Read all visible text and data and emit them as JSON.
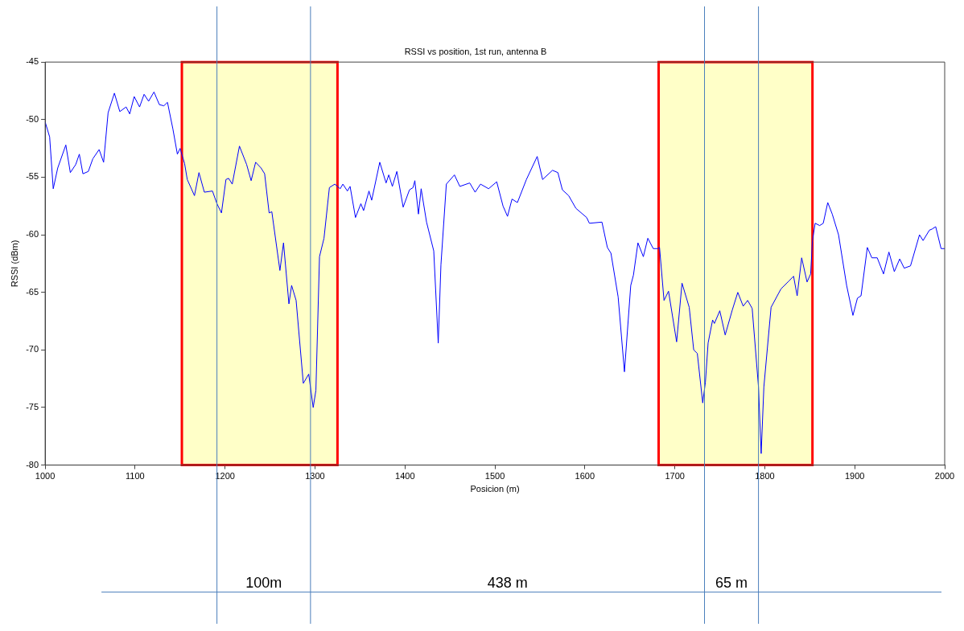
{
  "chart_data": {
    "type": "line",
    "title": "RSSI vs position, 1st run, antenna B",
    "xlabel": "Posicion (m)",
    "ylabel": "RSSI (dBm)",
    "xlim": [
      1000,
      2000
    ],
    "xticks": [
      1000,
      1100,
      1200,
      1300,
      1400,
      1500,
      1600,
      1700,
      1800,
      1900,
      2000
    ],
    "ylim": [
      -80,
      -45
    ],
    "yticks": [
      -80,
      -75,
      -70,
      -65,
      -60,
      -55,
      -50,
      -45
    ],
    "grid": false,
    "legend": false,
    "marker": "none",
    "line_style": "solid",
    "series": [
      {
        "color": "#0000ff",
        "x": [
          1000,
          1005,
          1009,
          1014,
          1023,
          1028,
          1034,
          1038,
          1042,
          1048,
          1053,
          1060,
          1065,
          1070,
          1077,
          1083,
          1090,
          1094,
          1099,
          1105,
          1110,
          1115,
          1121,
          1127,
          1132,
          1136,
          1142,
          1147,
          1150,
          1155,
          1158,
          1166,
          1171,
          1177,
          1186,
          1191,
          1196,
          1201,
          1204,
          1208,
          1216,
          1224,
          1229,
          1234,
          1240,
          1244,
          1249,
          1252,
          1261,
          1265,
          1271,
          1274,
          1279,
          1287,
          1293,
          1298,
          1301,
          1305,
          1310,
          1316,
          1322,
          1328,
          1331,
          1336,
          1339,
          1345,
          1351,
          1354,
          1360,
          1363,
          1372,
          1379,
          1382,
          1386,
          1391,
          1398,
          1405,
          1409,
          1411,
          1415,
          1418,
          1424,
          1432,
          1437,
          1440,
          1446,
          1455,
          1461,
          1472,
          1478,
          1484,
          1493,
          1502,
          1509,
          1514,
          1519,
          1525,
          1535,
          1547,
          1553,
          1564,
          1570,
          1575,
          1582,
          1590,
          1602,
          1605,
          1619,
          1625,
          1629,
          1637,
          1644,
          1651,
          1654,
          1659,
          1665,
          1670,
          1676,
          1681,
          1683,
          1688,
          1693,
          1702,
          1708,
          1716,
          1721,
          1725,
          1731,
          1734,
          1737,
          1742,
          1744,
          1750,
          1756,
          1764,
          1770,
          1776,
          1781,
          1786,
          1793,
          1796,
          1799,
          1807,
          1818,
          1827,
          1832,
          1836,
          1841,
          1847,
          1851,
          1853,
          1856,
          1861,
          1865,
          1870,
          1875,
          1882,
          1891,
          1898,
          1903,
          1907,
          1914,
          1919,
          1925,
          1932,
          1938,
          1944,
          1950,
          1955,
          1962,
          1972,
          1976,
          1983,
          1986,
          1990,
          1996,
          2000
        ],
        "values": [
          -50.2,
          -51.5,
          -56,
          -54.2,
          -52.2,
          -54.6,
          -53.9,
          -53,
          -54.7,
          -54.5,
          -53.4,
          -52.6,
          -53.7,
          -49.4,
          -47.7,
          -49.3,
          -48.9,
          -49.5,
          -48,
          -48.9,
          -47.8,
          -48.4,
          -47.6,
          -48.7,
          -48.8,
          -48.5,
          -50.8,
          -53,
          -52.5,
          -53.8,
          -55.2,
          -56.6,
          -54.6,
          -56.3,
          -56.2,
          -57.3,
          -58.1,
          -55.2,
          -55.1,
          -55.6,
          -52.3,
          -53.9,
          -55.3,
          -53.7,
          -54.2,
          -54.7,
          -58.1,
          -58,
          -63.1,
          -60.7,
          -66,
          -64.4,
          -65.7,
          -72.9,
          -72.1,
          -75,
          -73.5,
          -61.9,
          -60.3,
          -55.9,
          -55.6,
          -56,
          -55.6,
          -56.2,
          -55.8,
          -58.5,
          -57.3,
          -57.9,
          -56.2,
          -57,
          -53.7,
          -55.5,
          -54.8,
          -55.8,
          -54.5,
          -57.6,
          -56.1,
          -55.9,
          -55.3,
          -58.2,
          -56,
          -58.9,
          -61.4,
          -69.4,
          -62.6,
          -55.6,
          -54.8,
          -55.8,
          -55.5,
          -56.3,
          -55.6,
          -56,
          -55.4,
          -57.5,
          -58.4,
          -56.9,
          -57.2,
          -55.2,
          -53.2,
          -55.2,
          -54.4,
          -54.6,
          -56.1,
          -56.6,
          -57.7,
          -58.5,
          -59,
          -58.9,
          -61.1,
          -61.6,
          -65.4,
          -71.9,
          -64.4,
          -63.5,
          -60.7,
          -61.9,
          -60.3,
          -61.2,
          -61.2,
          -61.1,
          -65.7,
          -64.9,
          -69.3,
          -64.2,
          -66.3,
          -70,
          -70.3,
          -74.6,
          -72.8,
          -69.4,
          -67.4,
          -67.7,
          -66.6,
          -68.7,
          -66.5,
          -65,
          -66.2,
          -65.7,
          -66.4,
          -73.2,
          -79,
          -73.2,
          -66.3,
          -64.7,
          -64,
          -63.6,
          -65.3,
          -62,
          -64.1,
          -63.4,
          -60.5,
          -59,
          -59.2,
          -59,
          -57.2,
          -58.2,
          -60,
          -64.4,
          -67,
          -65.5,
          -65.3,
          -61.1,
          -62,
          -62,
          -63.4,
          -61.5,
          -63.2,
          -62.1,
          -62.9,
          -62.7,
          -60,
          -60.5,
          -59.6,
          -59.5,
          -59.3,
          -61.2,
          -61.2
        ]
      }
    ],
    "bands": [
      {
        "axis": "x",
        "from": 1152,
        "to": 1325,
        "color": "#ffffc8"
      },
      {
        "axis": "x",
        "from": 1682,
        "to": 1853,
        "color": "#ffffc8"
      }
    ],
    "ref_lines": [
      {
        "axis": "x",
        "value": 1191,
        "color": "#4a7ebb"
      },
      {
        "axis": "x",
        "value": 1295,
        "color": "#4a7ebb"
      },
      {
        "axis": "x",
        "value": 1733,
        "color": "#4a7ebb"
      },
      {
        "axis": "x",
        "value": 1793,
        "color": "#4a7ebb"
      }
    ],
    "annotations": [
      "100m",
      "438 m",
      "65 m"
    ]
  }
}
